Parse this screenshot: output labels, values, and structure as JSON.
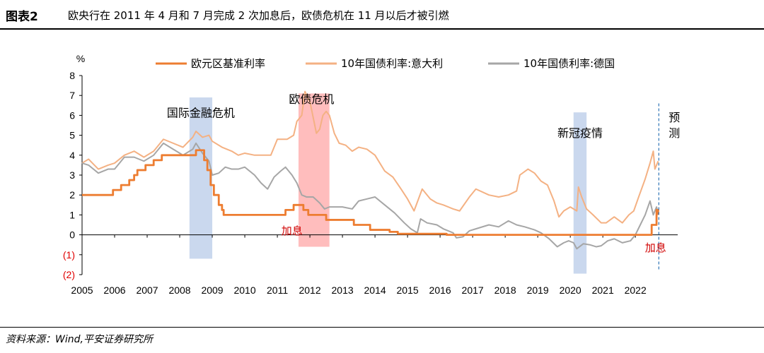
{
  "header": {
    "label": "图表2",
    "title": "欧央行在 2011 年 4 月和 7 月完成 2 次加息后，欧债危机在 11 月以后才被引燃"
  },
  "footer": {
    "source": "资料来源：Wind,平安证券研究所"
  },
  "colors": {
    "ecb": "#ed7d31",
    "italy": "#f4b183",
    "germany": "#a6a6a6",
    "band_blue": "#b4c7e7",
    "band_red": "#ff9999",
    "red_text": "#d00000"
  },
  "chart_data": {
    "type": "line",
    "y_unit": "%",
    "ylim": [
      -2,
      8
    ],
    "yticks": [
      -2,
      -1,
      0,
      1,
      2,
      3,
      4,
      5,
      6,
      7,
      8
    ],
    "ytick_labels": [
      "(2)",
      "(1)",
      "0",
      "1",
      "2",
      "3",
      "4",
      "5",
      "6",
      "7",
      "8"
    ],
    "xlim": [
      2005,
      2023.3
    ],
    "xticks": [
      2005,
      2006,
      2007,
      2008,
      2009,
      2010,
      2011,
      2012,
      2013,
      2014,
      2015,
      2016,
      2017,
      2018,
      2019,
      2020,
      2021,
      2022
    ],
    "xtick_labels": [
      "2005",
      "2006",
      "2007",
      "2008",
      "2009",
      "2010",
      "2011",
      "2012",
      "2013",
      "2014",
      "2015",
      "2016",
      "2017",
      "2018",
      "2019",
      "2020",
      "2021",
      "2022"
    ],
    "legend_position": "top",
    "series": [
      {
        "name": "欧元区基准利率",
        "kind": "step",
        "points": [
          [
            2005.0,
            2.0
          ],
          [
            2005.9,
            2.0
          ],
          [
            2005.95,
            2.25
          ],
          [
            2006.2,
            2.5
          ],
          [
            2006.45,
            2.75
          ],
          [
            2006.6,
            3.0
          ],
          [
            2006.7,
            3.25
          ],
          [
            2006.95,
            3.5
          ],
          [
            2007.2,
            3.75
          ],
          [
            2007.45,
            4.0
          ],
          [
            2008.5,
            4.25
          ],
          [
            2008.75,
            3.75
          ],
          [
            2008.85,
            3.25
          ],
          [
            2008.95,
            2.5
          ],
          [
            2009.05,
            2.0
          ],
          [
            2009.2,
            1.5
          ],
          [
            2009.3,
            1.25
          ],
          [
            2009.35,
            1.0
          ],
          [
            2011.25,
            1.25
          ],
          [
            2011.5,
            1.5
          ],
          [
            2011.8,
            1.25
          ],
          [
            2011.95,
            1.0
          ],
          [
            2012.5,
            0.75
          ],
          [
            2013.35,
            0.5
          ],
          [
            2013.85,
            0.25
          ],
          [
            2014.45,
            0.15
          ],
          [
            2014.7,
            0.05
          ],
          [
            2016.2,
            0.0
          ],
          [
            2022.5,
            0.5
          ],
          [
            2022.65,
            1.25
          ],
          [
            2022.7,
            1.0
          ]
        ]
      },
      {
        "name": "10年国债利率:意大利",
        "kind": "line",
        "points": [
          [
            2005.0,
            3.6
          ],
          [
            2005.2,
            3.8
          ],
          [
            2005.5,
            3.3
          ],
          [
            2005.8,
            3.5
          ],
          [
            2006.0,
            3.6
          ],
          [
            2006.3,
            4.0
          ],
          [
            2006.6,
            4.2
          ],
          [
            2006.9,
            3.9
          ],
          [
            2007.2,
            4.2
          ],
          [
            2007.5,
            4.8
          ],
          [
            2007.8,
            4.6
          ],
          [
            2008.1,
            4.4
          ],
          [
            2008.4,
            4.9
          ],
          [
            2008.5,
            5.2
          ],
          [
            2008.7,
            4.9
          ],
          [
            2008.9,
            5.0
          ],
          [
            2009.0,
            4.7
          ],
          [
            2009.3,
            4.4
          ],
          [
            2009.6,
            4.2
          ],
          [
            2009.8,
            4.0
          ],
          [
            2010.0,
            4.1
          ],
          [
            2010.3,
            4.0
          ],
          [
            2010.5,
            4.0
          ],
          [
            2010.8,
            4.0
          ],
          [
            2011.0,
            4.8
          ],
          [
            2011.3,
            4.8
          ],
          [
            2011.5,
            5.0
          ],
          [
            2011.6,
            5.7
          ],
          [
            2011.75,
            6.0
          ],
          [
            2011.85,
            7.2
          ],
          [
            2011.95,
            6.8
          ],
          [
            2012.0,
            6.7
          ],
          [
            2012.2,
            5.1
          ],
          [
            2012.3,
            5.3
          ],
          [
            2012.4,
            6.0
          ],
          [
            2012.5,
            6.2
          ],
          [
            2012.6,
            6.0
          ],
          [
            2012.75,
            5.1
          ],
          [
            2012.9,
            4.6
          ],
          [
            2013.1,
            4.5
          ],
          [
            2013.3,
            4.2
          ],
          [
            2013.5,
            4.4
          ],
          [
            2013.75,
            4.3
          ],
          [
            2014.0,
            4.0
          ],
          [
            2014.3,
            3.2
          ],
          [
            2014.55,
            2.9
          ],
          [
            2014.8,
            2.3
          ],
          [
            2015.0,
            1.8
          ],
          [
            2015.2,
            1.2
          ],
          [
            2015.45,
            2.3
          ],
          [
            2015.7,
            1.8
          ],
          [
            2015.9,
            1.6
          ],
          [
            2016.1,
            1.5
          ],
          [
            2016.4,
            1.3
          ],
          [
            2016.6,
            1.2
          ],
          [
            2016.9,
            1.9
          ],
          [
            2017.1,
            2.3
          ],
          [
            2017.5,
            2.0
          ],
          [
            2017.8,
            1.9
          ],
          [
            2018.1,
            2.0
          ],
          [
            2018.35,
            2.2
          ],
          [
            2018.45,
            3.0
          ],
          [
            2018.7,
            3.3
          ],
          [
            2018.9,
            3.1
          ],
          [
            2019.1,
            2.7
          ],
          [
            2019.3,
            2.5
          ],
          [
            2019.5,
            1.7
          ],
          [
            2019.65,
            0.9
          ],
          [
            2019.8,
            1.2
          ],
          [
            2020.0,
            1.4
          ],
          [
            2020.2,
            1.2
          ],
          [
            2020.25,
            2.4
          ],
          [
            2020.35,
            1.9
          ],
          [
            2020.5,
            1.3
          ],
          [
            2020.7,
            1.0
          ],
          [
            2020.95,
            0.6
          ],
          [
            2021.1,
            0.6
          ],
          [
            2021.35,
            0.9
          ],
          [
            2021.6,
            0.6
          ],
          [
            2021.8,
            1.0
          ],
          [
            2021.95,
            1.2
          ],
          [
            2022.1,
            1.9
          ],
          [
            2022.3,
            2.8
          ],
          [
            2022.45,
            3.6
          ],
          [
            2022.55,
            4.2
          ],
          [
            2022.6,
            3.3
          ],
          [
            2022.7,
            3.7
          ]
        ]
      },
      {
        "name": "10年国债利率:德国",
        "kind": "line",
        "points": [
          [
            2005.0,
            3.6
          ],
          [
            2005.2,
            3.5
          ],
          [
            2005.5,
            3.1
          ],
          [
            2005.8,
            3.3
          ],
          [
            2006.0,
            3.3
          ],
          [
            2006.3,
            3.9
          ],
          [
            2006.6,
            3.9
          ],
          [
            2006.9,
            3.7
          ],
          [
            2007.2,
            4.0
          ],
          [
            2007.5,
            4.6
          ],
          [
            2007.8,
            4.3
          ],
          [
            2008.1,
            4.0
          ],
          [
            2008.4,
            4.3
          ],
          [
            2008.5,
            4.6
          ],
          [
            2008.7,
            4.1
          ],
          [
            2008.9,
            3.7
          ],
          [
            2009.0,
            3.0
          ],
          [
            2009.2,
            3.1
          ],
          [
            2009.4,
            3.4
          ],
          [
            2009.6,
            3.3
          ],
          [
            2009.8,
            3.3
          ],
          [
            2010.0,
            3.4
          ],
          [
            2010.3,
            3.0
          ],
          [
            2010.5,
            2.6
          ],
          [
            2010.7,
            2.3
          ],
          [
            2010.9,
            2.9
          ],
          [
            2011.1,
            3.2
          ],
          [
            2011.25,
            3.4
          ],
          [
            2011.45,
            3.0
          ],
          [
            2011.6,
            2.6
          ],
          [
            2011.75,
            2.0
          ],
          [
            2011.9,
            1.9
          ],
          [
            2012.1,
            1.9
          ],
          [
            2012.3,
            1.6
          ],
          [
            2012.45,
            1.3
          ],
          [
            2012.6,
            1.4
          ],
          [
            2012.8,
            1.4
          ],
          [
            2013.0,
            1.4
          ],
          [
            2013.3,
            1.3
          ],
          [
            2013.5,
            1.7
          ],
          [
            2013.75,
            1.8
          ],
          [
            2014.0,
            1.9
          ],
          [
            2014.3,
            1.5
          ],
          [
            2014.6,
            1.1
          ],
          [
            2014.9,
            0.6
          ],
          [
            2015.1,
            0.3
          ],
          [
            2015.3,
            0.1
          ],
          [
            2015.4,
            0.8
          ],
          [
            2015.6,
            0.6
          ],
          [
            2015.9,
            0.5
          ],
          [
            2016.1,
            0.3
          ],
          [
            2016.4,
            0.1
          ],
          [
            2016.5,
            -0.15
          ],
          [
            2016.7,
            -0.1
          ],
          [
            2016.9,
            0.2
          ],
          [
            2017.1,
            0.3
          ],
          [
            2017.5,
            0.5
          ],
          [
            2017.8,
            0.4
          ],
          [
            2018.1,
            0.7
          ],
          [
            2018.35,
            0.5
          ],
          [
            2018.6,
            0.4
          ],
          [
            2018.9,
            0.25
          ],
          [
            2019.1,
            0.1
          ],
          [
            2019.35,
            -0.2
          ],
          [
            2019.6,
            -0.6
          ],
          [
            2019.8,
            -0.4
          ],
          [
            2019.95,
            -0.3
          ],
          [
            2020.1,
            -0.4
          ],
          [
            2020.2,
            -0.7
          ],
          [
            2020.4,
            -0.45
          ],
          [
            2020.6,
            -0.5
          ],
          [
            2020.8,
            -0.6
          ],
          [
            2020.95,
            -0.55
          ],
          [
            2021.15,
            -0.3
          ],
          [
            2021.35,
            -0.2
          ],
          [
            2021.6,
            -0.4
          ],
          [
            2021.85,
            -0.3
          ],
          [
            2022.0,
            0.0
          ],
          [
            2022.15,
            0.5
          ],
          [
            2022.3,
            1.0
          ],
          [
            2022.45,
            1.7
          ],
          [
            2022.55,
            1.0
          ],
          [
            2022.65,
            1.4
          ],
          [
            2022.7,
            1.1
          ]
        ]
      }
    ],
    "bands": [
      {
        "from": 2008.3,
        "to": 2009.0,
        "ymin": -1.2,
        "ymax": 6.9,
        "type": "blue"
      },
      {
        "from": 2011.65,
        "to": 2012.6,
        "ymin": -0.6,
        "ymax": 7.1,
        "type": "red"
      },
      {
        "from": 2020.1,
        "to": 2020.5,
        "ymin": -1.95,
        "ymax": 6.15,
        "type": "blue"
      }
    ],
    "forecast_line_x": 2022.72,
    "annotations": [
      {
        "text": "国际金融危机",
        "x": 2008.65,
        "y": 6.1,
        "color": "black"
      },
      {
        "text": "欧债危机",
        "x": 2012.05,
        "y": 6.8,
        "color": "black"
      },
      {
        "text": "新冠疫情",
        "x": 2020.3,
        "y": 5.1,
        "color": "black"
      },
      {
        "text": "加息",
        "x": 2011.45,
        "y": 0.2,
        "color": "red"
      },
      {
        "text": "加息",
        "x": 2022.62,
        "y": -0.65,
        "color": "red"
      }
    ],
    "forecast_label": [
      "预",
      "测"
    ]
  }
}
